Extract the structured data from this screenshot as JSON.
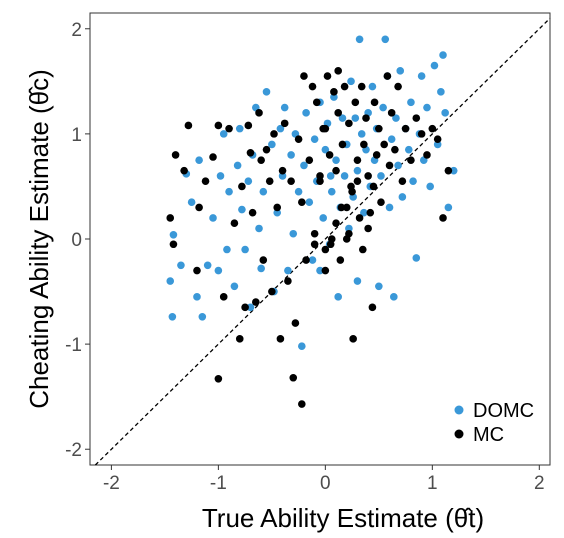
{
  "chart_data": {
    "type": "scatter",
    "xlabel": "True Ability Estimate (θ̂t)",
    "ylabel": "Cheating Ability Estimate (θ̂c)",
    "xlim": [
      -2.2,
      2.1
    ],
    "ylim": [
      -2.15,
      2.15
    ],
    "xticks": [
      -2,
      -1,
      0,
      1,
      2
    ],
    "yticks": [
      -2,
      -1,
      0,
      1,
      2
    ],
    "xtick_labels": [
      "-2",
      "-1",
      "0",
      "1",
      "2"
    ],
    "ytick_labels": [
      "-2",
      "-1",
      "0",
      "1",
      "2"
    ],
    "grid": false,
    "legend_position": "bottom-right",
    "reference_line": {
      "style": "dashed",
      "slope": 1,
      "intercept": 0
    },
    "series": [
      {
        "name": "DOMC",
        "color": "#3a98d8",
        "points": [
          [
            -1.43,
            -0.74
          ],
          [
            -1.42,
            0.04
          ],
          [
            -1.45,
            -0.4
          ],
          [
            -1.35,
            -0.25
          ],
          [
            -1.3,
            0.62
          ],
          [
            -1.25,
            0.35
          ],
          [
            -1.2,
            -0.55
          ],
          [
            -1.18,
            0.75
          ],
          [
            -1.15,
            -0.74
          ],
          [
            -1.1,
            -0.25
          ],
          [
            -1.05,
            0.2
          ],
          [
            -1.0,
            -0.3
          ],
          [
            -0.98,
            0.6
          ],
          [
            -0.95,
            1.0
          ],
          [
            -0.92,
            -0.1
          ],
          [
            -0.9,
            0.45
          ],
          [
            -0.85,
            -0.45
          ],
          [
            -0.82,
            0.7
          ],
          [
            -0.8,
            1.05
          ],
          [
            -0.78,
            0.28
          ],
          [
            -0.75,
            -0.1
          ],
          [
            -0.72,
            0.55
          ],
          [
            -0.7,
            -0.65
          ],
          [
            -0.68,
            0.8
          ],
          [
            -0.65,
            1.25
          ],
          [
            -0.62,
            0.1
          ],
          [
            -0.6,
            -0.28
          ],
          [
            -0.58,
            0.45
          ],
          [
            -0.55,
            1.4
          ],
          [
            -0.5,
            0.9
          ],
          [
            -0.48,
            -0.5
          ],
          [
            -0.45,
            0.25
          ],
          [
            -0.42,
            1.05
          ],
          [
            -0.4,
            0.6
          ],
          [
            -0.38,
            1.25
          ],
          [
            -0.35,
            -0.3
          ],
          [
            -0.32,
            0.8
          ],
          [
            -0.3,
            0.05
          ],
          [
            -0.28,
            1.0
          ],
          [
            -0.25,
            0.45
          ],
          [
            -0.22,
            -1.02
          ],
          [
            -0.2,
            0.7
          ],
          [
            -0.18,
            1.2
          ],
          [
            -0.15,
            0.35
          ],
          [
            -0.12,
            -0.2
          ],
          [
            -0.1,
            0.95
          ],
          [
            -0.08,
            0.55
          ],
          [
            -0.05,
            1.3
          ],
          [
            -0.02,
            0.2
          ],
          [
            0.0,
            0.85
          ],
          [
            0.02,
            1.1
          ],
          [
            0.04,
            -0.05
          ],
          [
            0.06,
            0.45
          ],
          [
            0.08,
            1.35
          ],
          [
            0.1,
            0.75
          ],
          [
            0.12,
            -0.55
          ],
          [
            0.14,
            0.3
          ],
          [
            0.16,
            1.15
          ],
          [
            0.18,
            0.6
          ],
          [
            0.2,
            0.9
          ],
          [
            0.22,
            0.1
          ],
          [
            0.24,
            1.5
          ],
          [
            0.26,
            0.4
          ],
          [
            0.28,
            1.15
          ],
          [
            0.3,
            0.65
          ],
          [
            0.32,
            1.9
          ],
          [
            0.34,
            1.0
          ],
          [
            0.36,
            0.25
          ],
          [
            0.38,
            0.85
          ],
          [
            0.4,
            1.2
          ],
          [
            0.42,
            0.5
          ],
          [
            0.44,
            1.45
          ],
          [
            0.46,
            0.75
          ],
          [
            0.48,
            1.05
          ],
          [
            0.5,
            -0.45
          ],
          [
            0.52,
            0.6
          ],
          [
            0.54,
            1.25
          ],
          [
            0.56,
            1.9
          ],
          [
            0.58,
            1.55
          ],
          [
            0.6,
            0.3
          ],
          [
            0.62,
            0.95
          ],
          [
            0.64,
            -0.55
          ],
          [
            0.66,
            1.15
          ],
          [
            0.68,
            0.7
          ],
          [
            0.7,
            1.6
          ],
          [
            0.72,
            0.4
          ],
          [
            0.75,
            1.05
          ],
          [
            0.78,
            0.85
          ],
          [
            0.8,
            1.3
          ],
          [
            0.82,
            0.55
          ],
          [
            0.85,
            -0.18
          ],
          [
            0.88,
            1.0
          ],
          [
            0.9,
            1.55
          ],
          [
            0.92,
            0.75
          ],
          [
            0.95,
            1.25
          ],
          [
            0.98,
            0.5
          ],
          [
            1.02,
            1.65
          ],
          [
            1.05,
            0.9
          ],
          [
            1.08,
            1.4
          ],
          [
            1.1,
            1.75
          ],
          [
            1.12,
            1.2
          ],
          [
            1.15,
            0.3
          ],
          [
            1.2,
            0.65
          ],
          [
            -0.05,
            -0.3
          ],
          [
            0.05,
            0.6
          ],
          [
            0.3,
            -0.4
          ]
        ]
      },
      {
        "name": "MC",
        "color": "#000000",
        "points": [
          [
            -1.45,
            0.2
          ],
          [
            -1.42,
            -0.05
          ],
          [
            -1.4,
            0.8
          ],
          [
            -1.32,
            0.65
          ],
          [
            -1.28,
            1.08
          ],
          [
            -1.2,
            -0.3
          ],
          [
            -1.18,
            0.3
          ],
          [
            -1.12,
            0.55
          ],
          [
            -1.05,
            0.78
          ],
          [
            -1.0,
            1.08
          ],
          [
            -0.95,
            -0.55
          ],
          [
            -0.9,
            1.05
          ],
          [
            -0.85,
            0.15
          ],
          [
            -0.8,
            -0.95
          ],
          [
            -0.78,
            0.5
          ],
          [
            -0.75,
            -0.65
          ],
          [
            -0.72,
            1.08
          ],
          [
            -0.7,
            0.82
          ],
          [
            -0.68,
            0.25
          ],
          [
            -0.65,
            -0.6
          ],
          [
            -0.62,
            1.2
          ],
          [
            -0.6,
            0.75
          ],
          [
            -0.58,
            -0.2
          ],
          [
            -0.55,
            0.85
          ],
          [
            -0.52,
            0.55
          ],
          [
            -0.5,
            -0.5
          ],
          [
            -0.48,
            1.0
          ],
          [
            -0.45,
            0.3
          ],
          [
            -0.42,
            -0.95
          ],
          [
            -0.4,
            0.65
          ],
          [
            -0.38,
            1.1
          ],
          [
            -0.35,
            -0.4
          ],
          [
            -0.32,
            0.55
          ],
          [
            -0.28,
            -0.8
          ],
          [
            -0.25,
            0.95
          ],
          [
            -0.22,
            0.35
          ],
          [
            -0.2,
            1.55
          ],
          [
            -0.18,
            -0.2
          ],
          [
            -0.15,
            0.75
          ],
          [
            -0.12,
            1.45
          ],
          [
            -0.1,
            0.05
          ],
          [
            -0.08,
            1.3
          ],
          [
            -0.05,
            0.55
          ],
          [
            -0.02,
            1.05
          ],
          [
            0.0,
            -0.1
          ],
          [
            0.02,
            1.55
          ],
          [
            0.04,
            0.8
          ],
          [
            0.06,
            0.0
          ],
          [
            0.08,
            1.4
          ],
          [
            0.1,
            0.65
          ],
          [
            0.12,
            1.2
          ],
          [
            0.14,
            -0.2
          ],
          [
            0.16,
            0.9
          ],
          [
            0.18,
            1.45
          ],
          [
            0.2,
            0.3
          ],
          [
            0.22,
            1.1
          ],
          [
            0.24,
            0.5
          ],
          [
            0.26,
            -0.95
          ],
          [
            0.28,
            1.3
          ],
          [
            0.3,
            0.75
          ],
          [
            0.32,
            0.2
          ],
          [
            0.34,
            1.45
          ],
          [
            0.36,
            0.9
          ],
          [
            0.38,
            1.15
          ],
          [
            0.4,
            0.6
          ],
          [
            0.42,
            0.25
          ],
          [
            0.44,
            -0.65
          ],
          [
            0.46,
            1.3
          ],
          [
            0.48,
            0.8
          ],
          [
            0.5,
            1.05
          ],
          [
            0.52,
            0.35
          ],
          [
            0.55,
            0.9
          ],
          [
            0.58,
            1.55
          ],
          [
            0.6,
            0.7
          ],
          [
            0.62,
            1.2
          ],
          [
            0.65,
            0.85
          ],
          [
            0.68,
            1.45
          ],
          [
            0.72,
            0.55
          ],
          [
            0.75,
            1.05
          ],
          [
            0.8,
            0.75
          ],
          [
            0.85,
            1.15
          ],
          [
            0.9,
            1.0
          ],
          [
            0.95,
            0.8
          ],
          [
            1.0,
            1.05
          ],
          [
            1.05,
            0.95
          ],
          [
            1.1,
            0.2
          ],
          [
            1.15,
            0.65
          ],
          [
            -0.3,
            -1.32
          ],
          [
            -0.22,
            -1.57
          ],
          [
            -1.0,
            -1.33
          ],
          [
            0.0,
            -0.3
          ],
          [
            -0.05,
            0.6
          ],
          [
            0.1,
            0.15
          ],
          [
            0.2,
            0.0
          ],
          [
            0.25,
            0.45
          ],
          [
            0.35,
            -0.1
          ],
          [
            0.45,
            0.5
          ],
          [
            0.15,
            0.3
          ],
          [
            -0.1,
            -0.05
          ],
          [
            0.05,
            -0.05
          ],
          [
            0.12,
            1.6
          ],
          [
            0.0,
            1.05
          ],
          [
            0.22,
            0.05
          ],
          [
            0.3,
            0.55
          ],
          [
            0.4,
            0.1
          ]
        ]
      }
    ]
  }
}
